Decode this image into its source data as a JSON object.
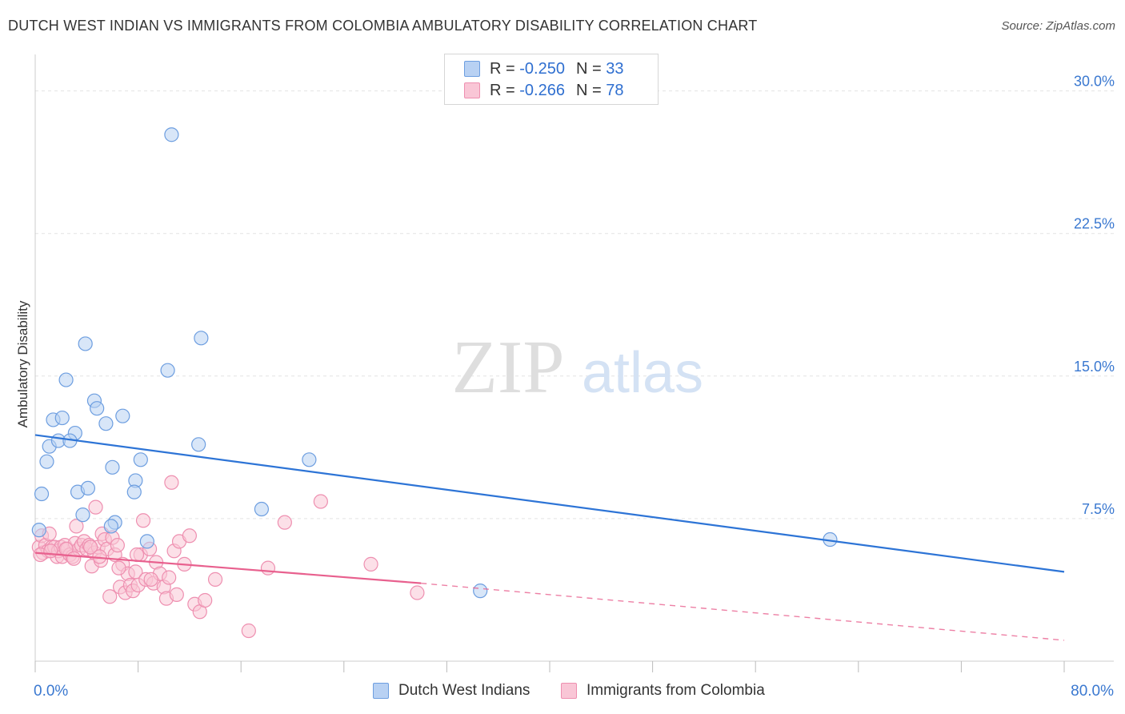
{
  "title": "DUTCH WEST INDIAN VS IMMIGRANTS FROM COLOMBIA AMBULATORY DISABILITY CORRELATION CHART",
  "source": "Source: ZipAtlas.com",
  "watermark": {
    "zip": "ZIP",
    "atlas": "atlas"
  },
  "legend": {
    "rows": [
      {
        "r_label": "R =",
        "r_value": "-0.250",
        "n_label": "N =",
        "n_value": "33"
      },
      {
        "r_label": "R =",
        "r_value": "-0.266",
        "n_label": "N =",
        "n_value": "78"
      }
    ]
  },
  "colors": {
    "blue": "#2d74d6",
    "blue_fill": "#b8d1f3",
    "blue_stroke": "#6d9ee0",
    "pink": "#e8608e",
    "pink_fill": "#f9c6d6",
    "pink_stroke": "#ee8fb0",
    "tick_label": "#3a78d0",
    "grid": "#e3e3e3"
  },
  "chart_data": {
    "type": "scatter",
    "title": "DUTCH WEST INDIAN VS IMMIGRANTS FROM COLOMBIA AMBULATORY DISABILITY CORRELATION CHART",
    "xlabel": "",
    "ylabel": "Ambulatory Disability",
    "xlim": [
      0,
      80
    ],
    "ylim": [
      0,
      31.5
    ],
    "x_tick_labels": [
      "0.0%",
      "80.0%"
    ],
    "y_ticks": [
      7.5,
      15.0,
      22.5,
      30.0
    ],
    "y_tick_labels": [
      "7.5%",
      "15.0%",
      "22.5%",
      "30.0%"
    ],
    "x_minor_ticks": [
      0,
      8,
      16,
      24,
      32,
      40,
      48,
      56,
      64,
      72,
      80
    ],
    "legend_position": "bottom-center",
    "series": [
      {
        "name": "Dutch West Indians",
        "color_key": "blue",
        "R": -0.25,
        "N": 33,
        "points": [
          [
            10.6,
            27.7
          ],
          [
            3.9,
            16.7
          ],
          [
            12.9,
            17.0
          ],
          [
            10.3,
            15.3
          ],
          [
            2.4,
            14.8
          ],
          [
            4.6,
            13.7
          ],
          [
            1.4,
            12.7
          ],
          [
            2.1,
            12.8
          ],
          [
            4.8,
            13.3
          ],
          [
            6.8,
            12.9
          ],
          [
            5.5,
            12.5
          ],
          [
            3.1,
            12.0
          ],
          [
            1.1,
            11.3
          ],
          [
            1.8,
            11.6
          ],
          [
            2.7,
            11.6
          ],
          [
            12.7,
            11.4
          ],
          [
            0.9,
            10.5
          ],
          [
            8.2,
            10.6
          ],
          [
            6.0,
            10.2
          ],
          [
            21.3,
            10.6
          ],
          [
            7.8,
            9.5
          ],
          [
            0.5,
            8.8
          ],
          [
            3.3,
            8.9
          ],
          [
            4.1,
            9.1
          ],
          [
            7.7,
            8.9
          ],
          [
            3.7,
            7.7
          ],
          [
            6.2,
            7.3
          ],
          [
            5.9,
            7.1
          ],
          [
            17.6,
            8.0
          ],
          [
            0.3,
            6.9
          ],
          [
            8.7,
            6.3
          ],
          [
            61.8,
            6.4
          ],
          [
            34.6,
            3.7
          ]
        ],
        "trend": {
          "x0": 0,
          "y0": 11.9,
          "x1": 80,
          "y1": 4.7,
          "style": "solid"
        }
      },
      {
        "name": "Immigrants from Colombia",
        "color_key": "pink",
        "R": -0.266,
        "N": 78,
        "points": [
          [
            0.3,
            6.0
          ],
          [
            0.5,
            6.6
          ],
          [
            0.6,
            5.7
          ],
          [
            0.8,
            6.1
          ],
          [
            1.0,
            5.8
          ],
          [
            1.1,
            6.7
          ],
          [
            1.3,
            6.0
          ],
          [
            1.5,
            6.0
          ],
          [
            1.7,
            5.5
          ],
          [
            1.8,
            5.8
          ],
          [
            2.0,
            6.0
          ],
          [
            2.1,
            5.5
          ],
          [
            2.3,
            6.1
          ],
          [
            2.5,
            5.9
          ],
          [
            2.7,
            5.6
          ],
          [
            2.9,
            5.5
          ],
          [
            3.1,
            6.2
          ],
          [
            3.2,
            7.1
          ],
          [
            3.4,
            5.9
          ],
          [
            3.6,
            6.1
          ],
          [
            3.8,
            6.3
          ],
          [
            4.0,
            5.9
          ],
          [
            4.2,
            6.1
          ],
          [
            4.4,
            5.0
          ],
          [
            4.6,
            5.7
          ],
          [
            4.7,
            8.1
          ],
          [
            4.9,
            6.0
          ],
          [
            5.1,
            5.3
          ],
          [
            5.2,
            6.7
          ],
          [
            5.4,
            6.4
          ],
          [
            5.6,
            5.9
          ],
          [
            5.8,
            3.4
          ],
          [
            6.0,
            6.5
          ],
          [
            6.2,
            5.6
          ],
          [
            6.4,
            6.1
          ],
          [
            6.6,
            3.9
          ],
          [
            6.8,
            5.1
          ],
          [
            7.0,
            3.6
          ],
          [
            7.2,
            4.6
          ],
          [
            7.4,
            4.0
          ],
          [
            7.6,
            3.7
          ],
          [
            7.8,
            4.7
          ],
          [
            8.0,
            4.0
          ],
          [
            8.2,
            5.6
          ],
          [
            8.4,
            7.4
          ],
          [
            8.6,
            4.3
          ],
          [
            8.9,
            5.9
          ],
          [
            9.2,
            4.1
          ],
          [
            9.4,
            5.2
          ],
          [
            9.7,
            4.6
          ],
          [
            10.0,
            3.9
          ],
          [
            10.2,
            3.3
          ],
          [
            10.4,
            4.4
          ],
          [
            10.6,
            9.4
          ],
          [
            10.8,
            5.8
          ],
          [
            11.0,
            3.5
          ],
          [
            11.2,
            6.3
          ],
          [
            11.6,
            5.1
          ],
          [
            12.0,
            6.6
          ],
          [
            12.4,
            3.0
          ],
          [
            12.8,
            2.6
          ],
          [
            13.2,
            3.2
          ],
          [
            14.0,
            4.3
          ],
          [
            16.6,
            1.6
          ],
          [
            18.1,
            4.9
          ],
          [
            19.4,
            7.3
          ],
          [
            22.2,
            8.4
          ],
          [
            26.1,
            5.1
          ],
          [
            29.7,
            3.6
          ],
          [
            0.4,
            5.6
          ],
          [
            1.2,
            5.8
          ],
          [
            2.4,
            5.9
          ],
          [
            3.0,
            5.4
          ],
          [
            4.3,
            6.0
          ],
          [
            5.0,
            5.5
          ],
          [
            6.5,
            4.9
          ],
          [
            7.9,
            5.6
          ],
          [
            9.0,
            4.3
          ]
        ],
        "trend": {
          "x0": 0,
          "y0": 5.7,
          "x1": 30,
          "y1": 4.1,
          "style": "solid"
        },
        "trend_extension": {
          "x0": 30,
          "y0": 4.1,
          "x1": 80,
          "y1": 1.1,
          "style": "dashed"
        }
      }
    ]
  }
}
